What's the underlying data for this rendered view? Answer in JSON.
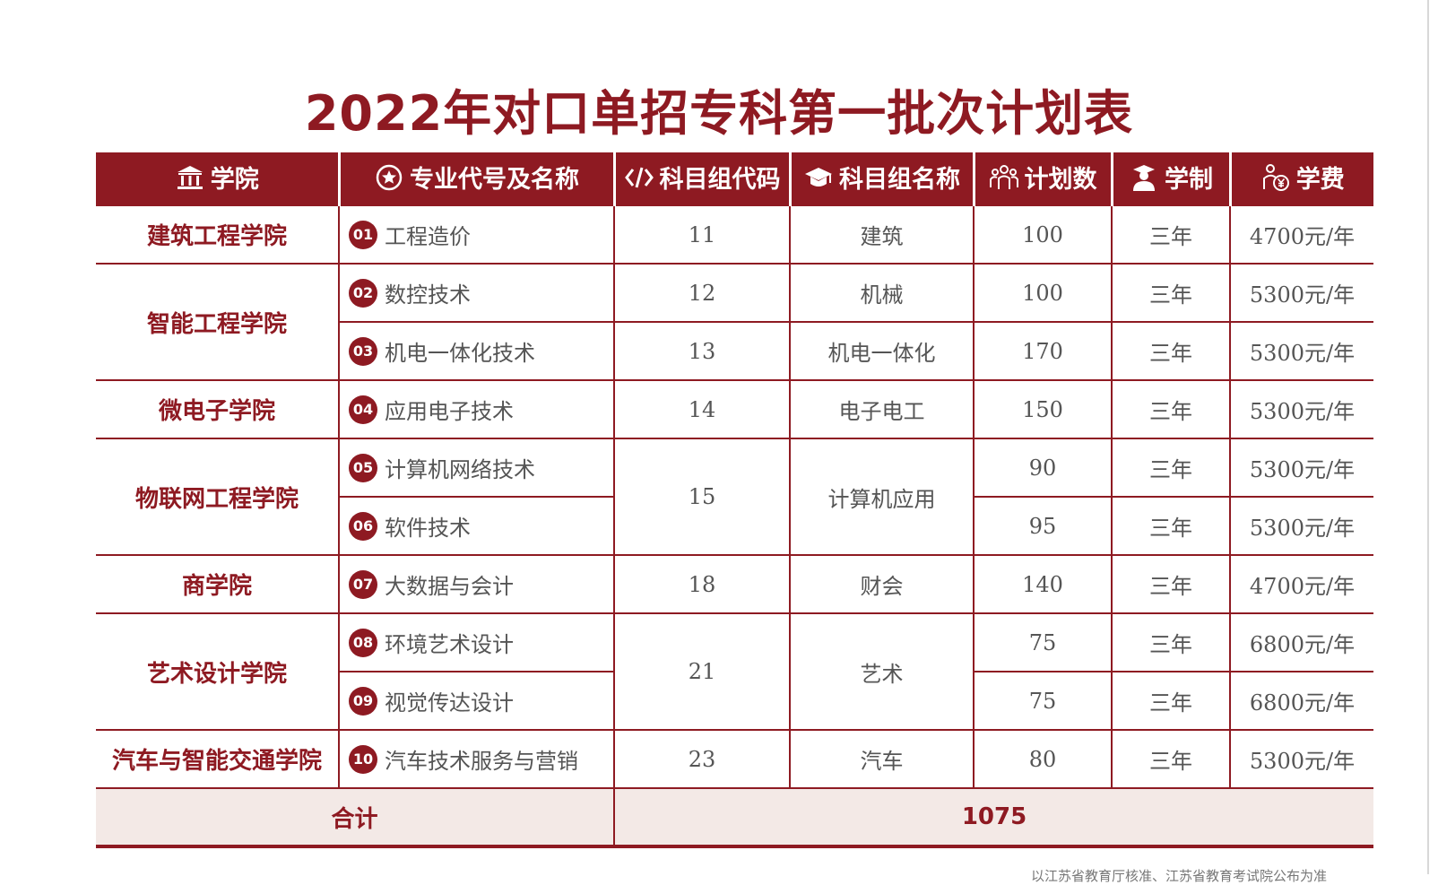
{
  "title": "2022年对口单招专科第一批次计划表",
  "headers": {
    "college": "学院",
    "major": "专业代号及名称",
    "group_code": "科目组代码",
    "group_name": "科目组名称",
    "plan": "计划数",
    "duration": "学制",
    "fee": "学费"
  },
  "colleges": [
    "建筑工程学院",
    "智能工程学院",
    "微电子学院",
    "物联网工程学院",
    "商学院",
    "艺术设计学院",
    "汽车与智能交通学院"
  ],
  "rows": [
    {
      "no": "01",
      "major": "工程造价",
      "code": "11",
      "group": "建筑",
      "plan": "100",
      "duration": "三年",
      "fee": "4700元/年"
    },
    {
      "no": "02",
      "major": "数控技术",
      "code": "12",
      "group": "机械",
      "plan": "100",
      "duration": "三年",
      "fee": "5300元/年"
    },
    {
      "no": "03",
      "major": "机电一体化技术",
      "code": "13",
      "group": "机电一体化",
      "plan": "170",
      "duration": "三年",
      "fee": "5300元/年"
    },
    {
      "no": "04",
      "major": "应用电子技术",
      "code": "14",
      "group": "电子电工",
      "plan": "150",
      "duration": "三年",
      "fee": "5300元/年"
    },
    {
      "no": "05",
      "major": "计算机网络技术",
      "code": "15",
      "group": "计算机应用",
      "plan": "90",
      "duration": "三年",
      "fee": "5300元/年"
    },
    {
      "no": "06",
      "major": "软件技术",
      "code": "",
      "group": "",
      "plan": "95",
      "duration": "三年",
      "fee": "5300元/年"
    },
    {
      "no": "07",
      "major": "大数据与会计",
      "code": "18",
      "group": "财会",
      "plan": "140",
      "duration": "三年",
      "fee": "4700元/年"
    },
    {
      "no": "08",
      "major": "环境艺术设计",
      "code": "21",
      "group": "艺术",
      "plan": "75",
      "duration": "三年",
      "fee": "6800元/年"
    },
    {
      "no": "09",
      "major": "视觉传达设计",
      "code": "",
      "group": "",
      "plan": "75",
      "duration": "三年",
      "fee": "6800元/年"
    },
    {
      "no": "10",
      "major": "汽车技术服务与营销",
      "code": "23",
      "group": "汽车",
      "plan": "80",
      "duration": "三年",
      "fee": "5300元/年"
    }
  ],
  "total": {
    "label": "合计",
    "value": "1075"
  },
  "footnote": "以江苏省教育厅核准、江苏省教育考试院公布为准",
  "colors": {
    "accent": "#8e1a22",
    "total_bg": "#f3e9e6"
  },
  "icons": {
    "college": "institution-icon",
    "major": "star-circle-icon",
    "group_code": "code-brackets-icon",
    "group_name": "graduation-cap-icon",
    "plan": "people-group-icon",
    "duration": "graduate-person-icon",
    "fee": "person-yuan-icon"
  }
}
